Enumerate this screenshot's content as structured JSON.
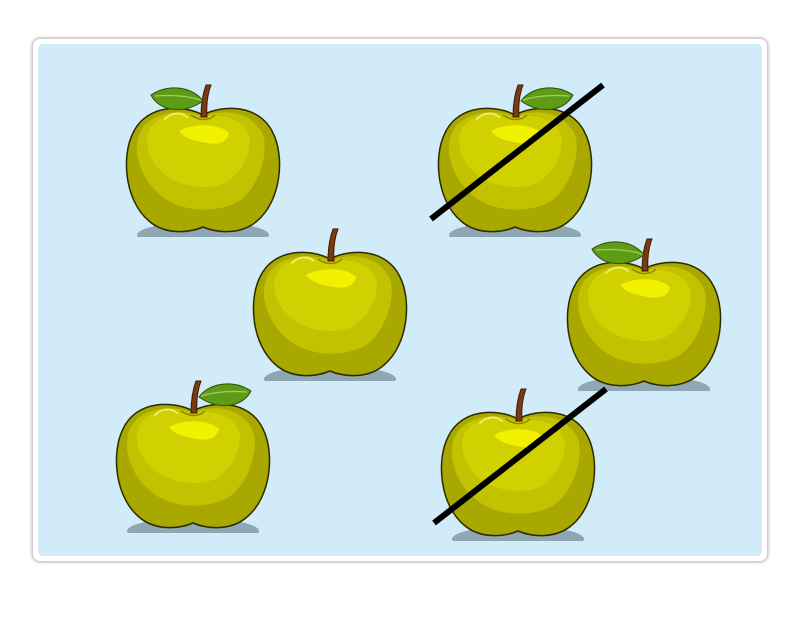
{
  "scene": {
    "background_color": "#d1ebf8",
    "apple_color": "#c9c800",
    "leaf_color": "#5e9c17",
    "stem_color": "#7b3b12",
    "crossout_color": "#000000",
    "apples": [
      {
        "leaf": "left",
        "crossed": false
      },
      {
        "leaf": "right",
        "crossed": true
      },
      {
        "leaf": "none",
        "crossed": false
      },
      {
        "leaf": "left",
        "crossed": false
      },
      {
        "leaf": "right",
        "crossed": false
      },
      {
        "leaf": "none",
        "crossed": true
      }
    ]
  }
}
